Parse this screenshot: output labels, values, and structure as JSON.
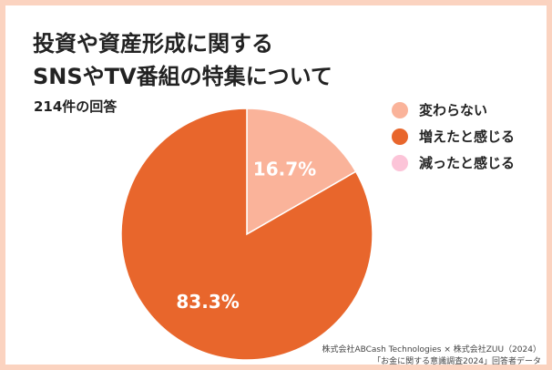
{
  "header": {
    "title_line1": "投資や資産形成に関する",
    "title_line2": "SNSやTV番組の特集について",
    "subtitle": "214件の回答"
  },
  "chart_data": {
    "type": "pie",
    "title": "投資や資産形成に関するSNSやTV番組の特集について",
    "subtitle": "214件の回答",
    "categories": [
      "変わらない",
      "増えたと感じる",
      "減ったと感じる"
    ],
    "values": [
      16.7,
      83.3,
      0
    ],
    "data_labels": [
      "16.7%",
      "83.3%",
      ""
    ],
    "colors": [
      "#fab39a",
      "#e8662c",
      "#fcc4d8"
    ],
    "legend_position": "right",
    "start_angle": "top, clockwise"
  },
  "source": {
    "line1": "株式会社ABCash Technologies × 株式会社ZUU（2024）",
    "line2": "「お金に関する意識調査2024」回答者データ"
  }
}
